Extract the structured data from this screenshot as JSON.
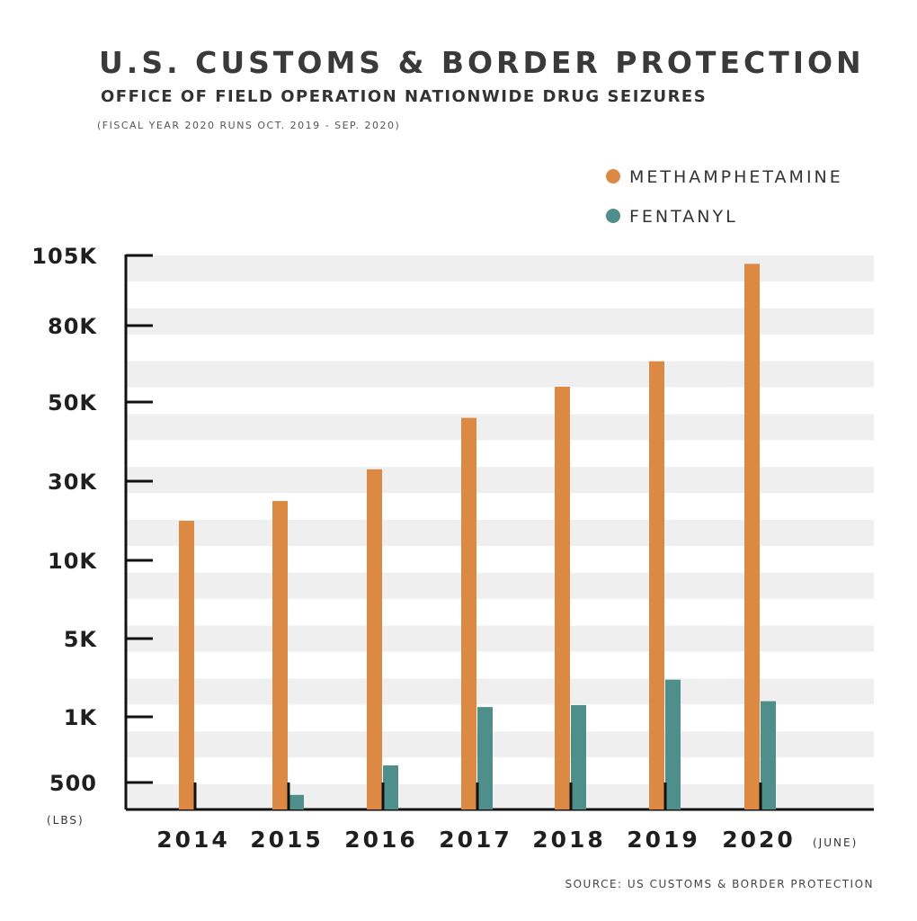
{
  "header": {
    "title": "U.S. CUSTOMS & BORDER PROTECTION",
    "subtitle": "OFFICE OF FIELD OPERATION NATIONWIDE DRUG SEIZURES",
    "note": "(FISCAL YEAR 2020 RUNS OCT. 2019 - SEP. 2020)"
  },
  "footer": {
    "source": "SOURCE: US CUSTOMS & BORDER PROTECTION"
  },
  "colors": {
    "methamphetamine": "#dc8a43",
    "fentanyl": "#4e8f8c",
    "stripe": "#efefef",
    "axis": "#111111"
  },
  "chart_data": {
    "type": "bar",
    "categories": [
      "2014",
      "2015",
      "2016",
      "2017",
      "2018",
      "2019",
      "2020"
    ],
    "category_suffix": "(JUNE)",
    "series": [
      {
        "name": "METHAMPHETAMINE",
        "values": [
          20000,
          25000,
          33000,
          46000,
          56000,
          66000,
          102000
        ]
      },
      {
        "name": "FENTANYL",
        "values": [
          null,
          270,
          630,
          1500,
          1600,
          2900,
          1800
        ]
      }
    ],
    "yticks": [
      {
        "label": "105K",
        "value": 105000
      },
      {
        "label": "80K",
        "value": 80000
      },
      {
        "label": "50K",
        "value": 50000
      },
      {
        "label": "30K",
        "value": 30000
      },
      {
        "label": "10K",
        "value": 10000
      },
      {
        "label": "5K",
        "value": 5000
      },
      {
        "label": "1K",
        "value": 1000
      },
      {
        "label": "500",
        "value": 500
      }
    ],
    "yunit": "(LBS)",
    "legend_position": "top-right",
    "grid": "horizontal stripes"
  }
}
